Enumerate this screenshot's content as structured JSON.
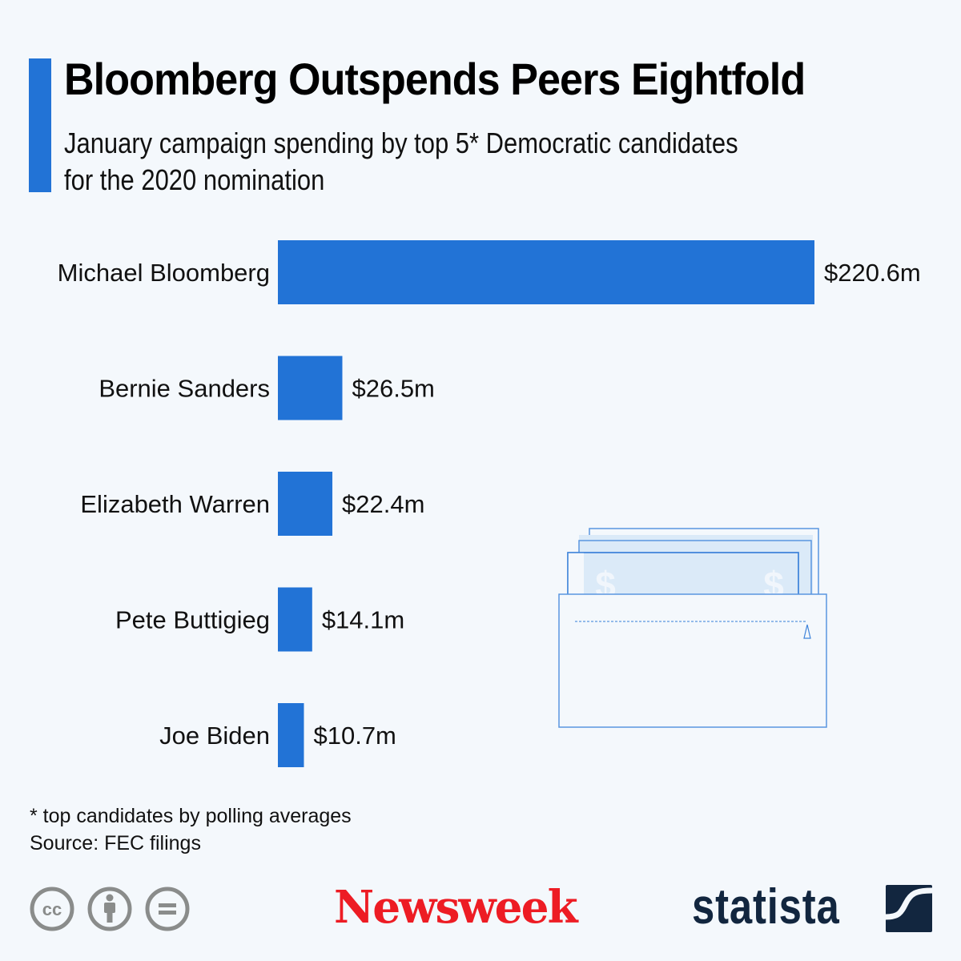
{
  "header": {
    "title": "Bloomberg Outspends Peers Eightfold",
    "subtitle_line1": "January campaign spending by top 5* Democratic candidates",
    "subtitle_line2": "for the 2020 nomination"
  },
  "colors": {
    "bar": "#2273d6",
    "accent": "#2273d6",
    "background": "#f4f8fc",
    "newsweek_red": "#ed1c24",
    "statista_navy": "#12263f"
  },
  "chart_data": {
    "type": "bar",
    "orientation": "horizontal",
    "title": "Bloomberg Outspends Peers Eightfold",
    "subtitle": "January campaign spending by top 5* Democratic candidates for the 2020 nomination",
    "categories": [
      "Michael Bloomberg",
      "Bernie Sanders",
      "Elizabeth Warren",
      "Pete Buttigieg",
      "Joe Biden"
    ],
    "values": [
      220.6,
      26.5,
      22.4,
      14.1,
      10.7
    ],
    "value_labels": [
      "$220.6m",
      "$26.5m",
      "$22.4m",
      "$14.1m",
      "$10.7m"
    ],
    "unit": "million USD",
    "xlabel": "",
    "ylabel": "",
    "xlim": [
      0,
      220.6
    ],
    "grid": false,
    "legend": "none"
  },
  "illustration": {
    "name": "wallet-with-dollar-bills",
    "symbols": [
      "$",
      "$"
    ]
  },
  "footer": {
    "note": "* top candidates by polling averages",
    "source": "Source: FEC filings",
    "license_icons": [
      "cc-icon",
      "attribution-icon",
      "no-derivatives-icon"
    ],
    "cc_text": "cc",
    "brand_newsweek": "Newsweek",
    "brand_statista": "statista"
  }
}
